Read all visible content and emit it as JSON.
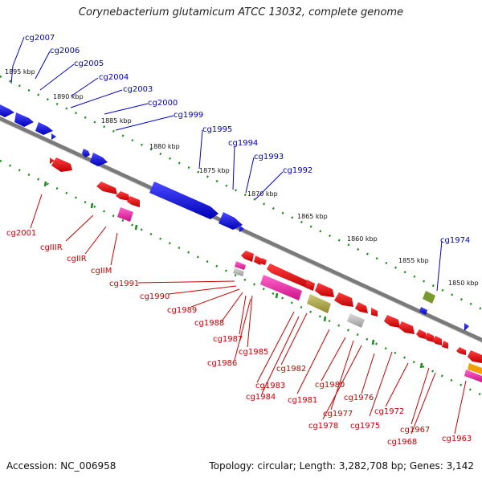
{
  "title": "Corynebacterium glutamicum ATCC 13032, complete genome",
  "footer": {
    "accession": "Accession: NC_006958",
    "topology": "Topology: circular; Length: 3,282,708 bp; Genes: 3,142"
  },
  "colors": {
    "forward_gene": "#0000ee",
    "reverse_gene": "#ee0000",
    "forward_label": "#0000cc",
    "reverse_label": "#cc0000",
    "tick": "#1a8a1a",
    "backbone": "#808080",
    "pink": "#ee22aa",
    "olive": "#a8a040",
    "gray": "#b8b8b8",
    "green": "#7a9a30",
    "orange": "#f0a000"
  },
  "scale_labels": [
    {
      "text": "1895 kbp"
    },
    {
      "text": "1890 kbp"
    },
    {
      "text": "1885 kbp"
    },
    {
      "text": "1880 kbp"
    },
    {
      "text": "1875 kbp"
    },
    {
      "text": "1870 kbp"
    },
    {
      "text": "1865 kbp"
    },
    {
      "text": "1860 kbp"
    },
    {
      "text": "1855 kbp"
    },
    {
      "text": "1850 kbp"
    }
  ],
  "forward_labels": [
    {
      "text": "cg2007"
    },
    {
      "text": "cg2006"
    },
    {
      "text": "cg2005"
    },
    {
      "text": "cg2004"
    },
    {
      "text": "cg2003"
    },
    {
      "text": "cg2000"
    },
    {
      "text": "cg1999"
    },
    {
      "text": "cg1995"
    },
    {
      "text": "cg1994"
    },
    {
      "text": "cg1993"
    },
    {
      "text": "cg1992"
    },
    {
      "text": "cg1974"
    }
  ],
  "reverse_labels": [
    {
      "text": "cg2001"
    },
    {
      "text": "cgIIIR"
    },
    {
      "text": "cgIIR"
    },
    {
      "text": "cgIIM"
    },
    {
      "text": "cg1991"
    },
    {
      "text": "cg1990"
    },
    {
      "text": "cg1989"
    },
    {
      "text": "cg1988"
    },
    {
      "text": "cg1987"
    },
    {
      "text": "cg1985"
    },
    {
      "text": "cg1986"
    },
    {
      "text": "cg1983"
    },
    {
      "text": "cg1984"
    },
    {
      "text": "cg1982"
    },
    {
      "text": "cg1981"
    },
    {
      "text": "cg1980"
    },
    {
      "text": "cg1977"
    },
    {
      "text": "cg1978"
    },
    {
      "text": "cg1976"
    },
    {
      "text": "cg1975"
    },
    {
      "text": "cg1972"
    },
    {
      "text": "cg1967"
    },
    {
      "text": "cg1968"
    },
    {
      "text": "cg1963"
    }
  ]
}
